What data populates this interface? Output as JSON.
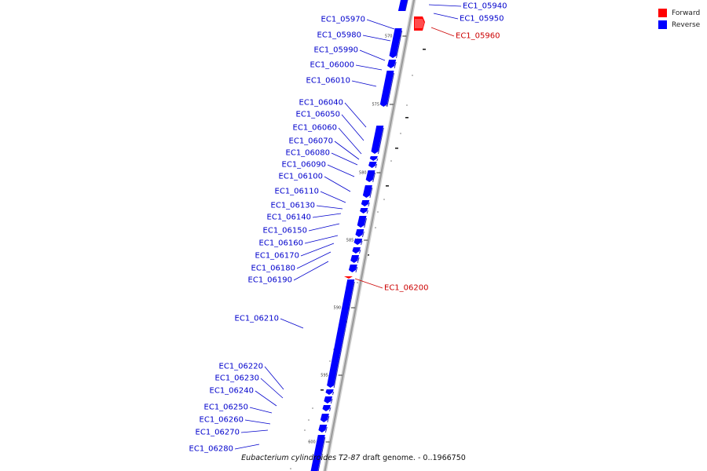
{
  "colors": {
    "forward": "#ff0000",
    "reverse": "#0000ff",
    "label_forward": "#cc0000",
    "label_reverse": "#0000cc",
    "backbone": "#9a9a9a"
  },
  "legend": {
    "forward_label": "Forward",
    "reverse_label": "Reverse"
  },
  "caption": {
    "organism": "Eubacterium cylindroides T2-87",
    "suffix": " draft genome. - 0..1966750"
  },
  "ticks": [
    "570 kbp",
    "575 kbp",
    "580 kbp",
    "585 kbp",
    "590 kbp",
    "595 kbp",
    "600 kbp"
  ],
  "genes": [
    {
      "label": "EC1_05940",
      "strand": "reverse"
    },
    {
      "label": "EC1_05950",
      "strand": "reverse"
    },
    {
      "label": "EC1_05960",
      "strand": "forward"
    },
    {
      "label": "EC1_05970",
      "strand": "reverse"
    },
    {
      "label": "EC1_05980",
      "strand": "reverse"
    },
    {
      "label": "EC1_05990",
      "strand": "reverse"
    },
    {
      "label": "EC1_06000",
      "strand": "reverse"
    },
    {
      "label": "EC1_06010",
      "strand": "reverse"
    },
    {
      "label": "EC1_06040",
      "strand": "reverse"
    },
    {
      "label": "EC1_06050",
      "strand": "reverse"
    },
    {
      "label": "EC1_06060",
      "strand": "reverse"
    },
    {
      "label": "EC1_06070",
      "strand": "reverse"
    },
    {
      "label": "EC1_06080",
      "strand": "reverse"
    },
    {
      "label": "EC1_06090",
      "strand": "reverse"
    },
    {
      "label": "EC1_06100",
      "strand": "reverse"
    },
    {
      "label": "EC1_06110",
      "strand": "reverse"
    },
    {
      "label": "EC1_06130",
      "strand": "reverse"
    },
    {
      "label": "EC1_06140",
      "strand": "reverse"
    },
    {
      "label": "EC1_06150",
      "strand": "reverse"
    },
    {
      "label": "EC1_06160",
      "strand": "reverse"
    },
    {
      "label": "EC1_06170",
      "strand": "reverse"
    },
    {
      "label": "EC1_06180",
      "strand": "reverse"
    },
    {
      "label": "EC1_06190",
      "strand": "reverse"
    },
    {
      "label": "EC1_06200",
      "strand": "forward"
    },
    {
      "label": "EC1_06210",
      "strand": "reverse"
    },
    {
      "label": "EC1_06220",
      "strand": "reverse"
    },
    {
      "label": "EC1_06230",
      "strand": "reverse"
    },
    {
      "label": "EC1_06240",
      "strand": "reverse"
    },
    {
      "label": "EC1_06250",
      "strand": "reverse"
    },
    {
      "label": "EC1_06260",
      "strand": "reverse"
    },
    {
      "label": "EC1_06270",
      "strand": "reverse"
    },
    {
      "label": "EC1_06280",
      "strand": "reverse"
    }
  ]
}
